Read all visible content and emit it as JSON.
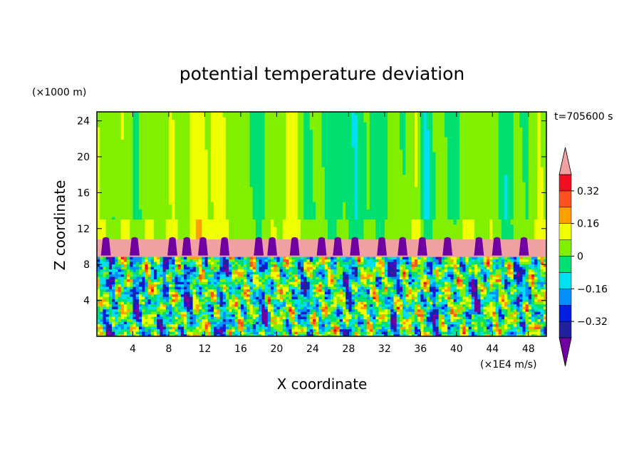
{
  "chart_data": {
    "type": "heatmap",
    "title": "potential temperature deviation",
    "xlabel": "X coordinate",
    "ylabel": "Z coordinate",
    "x_units": "(×1E4 m/s)",
    "y_units": "(×1000 m)",
    "time_label": "t=705600 s",
    "xlim": [
      0,
      50
    ],
    "ylim": [
      0,
      25
    ],
    "x_ticks": [
      4,
      8,
      12,
      16,
      20,
      24,
      28,
      32,
      36,
      40,
      44,
      48
    ],
    "y_ticks": [
      4,
      8,
      12,
      16,
      20,
      24
    ],
    "colorbar": {
      "levels": [
        -0.4,
        -0.32,
        -0.24,
        -0.16,
        -0.08,
        0,
        0.08,
        0.16,
        0.24,
        0.32,
        0.4
      ],
      "labels": [
        "0.32",
        "0.16",
        "0",
        "−0.16",
        "−0.32"
      ],
      "label_values": [
        0.32,
        0.16,
        0,
        -0.16,
        -0.32
      ],
      "colors": [
        "#7000a0",
        "#2020a0",
        "#0020e0",
        "#0090ff",
        "#00e0f0",
        "#00e070",
        "#80f000",
        "#f0ff00",
        "#ffa000",
        "#ff5020",
        "#f01020",
        "#f0a0a0"
      ],
      "extend": "both"
    },
    "regions": [
      {
        "z_range": [
          0,
          9
        ],
        "pattern": "turbulent mixed field"
      },
      {
        "z_range": [
          9,
          10.7
        ],
        "pattern": "strong deviation band (upper extreme)",
        "value": 0.45
      },
      {
        "z_range": [
          10.7,
          25
        ],
        "pattern": "weak vertical plume structures"
      }
    ],
    "upper_columns": [
      {
        "x": [
          9.5,
          13.5
        ],
        "value": 0.12
      },
      {
        "x": [
          26.5,
          30.5
        ],
        "value": -0.1
      },
      {
        "x": [
          2.5,
          4.5
        ],
        "value": 0.06
      },
      {
        "x": [
          20.5,
          22.5
        ],
        "value": 0.06
      },
      {
        "x": [
          36,
          37
        ],
        "value": -0.12
      },
      {
        "x": [
          45,
          46.5
        ],
        "value": -0.05
      }
    ],
    "lower_columns": [
      {
        "x": 1.5,
        "value": -0.36
      },
      {
        "x": 4.5,
        "value": -0.34
      },
      {
        "x": 7.5,
        "value": -0.3
      },
      {
        "x": 10,
        "value": -0.38
      },
      {
        "x": 14,
        "value": -0.33
      },
      {
        "x": 18.5,
        "value": -0.35
      },
      {
        "x": 23,
        "value": -0.3
      },
      {
        "x": 28,
        "value": -0.36
      },
      {
        "x": 33,
        "value": -0.33
      },
      {
        "x": 37.5,
        "value": -0.35
      },
      {
        "x": 42,
        "value": -0.36
      },
      {
        "x": 47,
        "value": -0.32
      }
    ],
    "band_dips": [
      1,
      4.2,
      8.4,
      10,
      11.8,
      14.2,
      18,
      19.5,
      22,
      25,
      26.8,
      28.7,
      31.7,
      34,
      36.2,
      39,
      42.5,
      44.5,
      47.5
    ]
  }
}
